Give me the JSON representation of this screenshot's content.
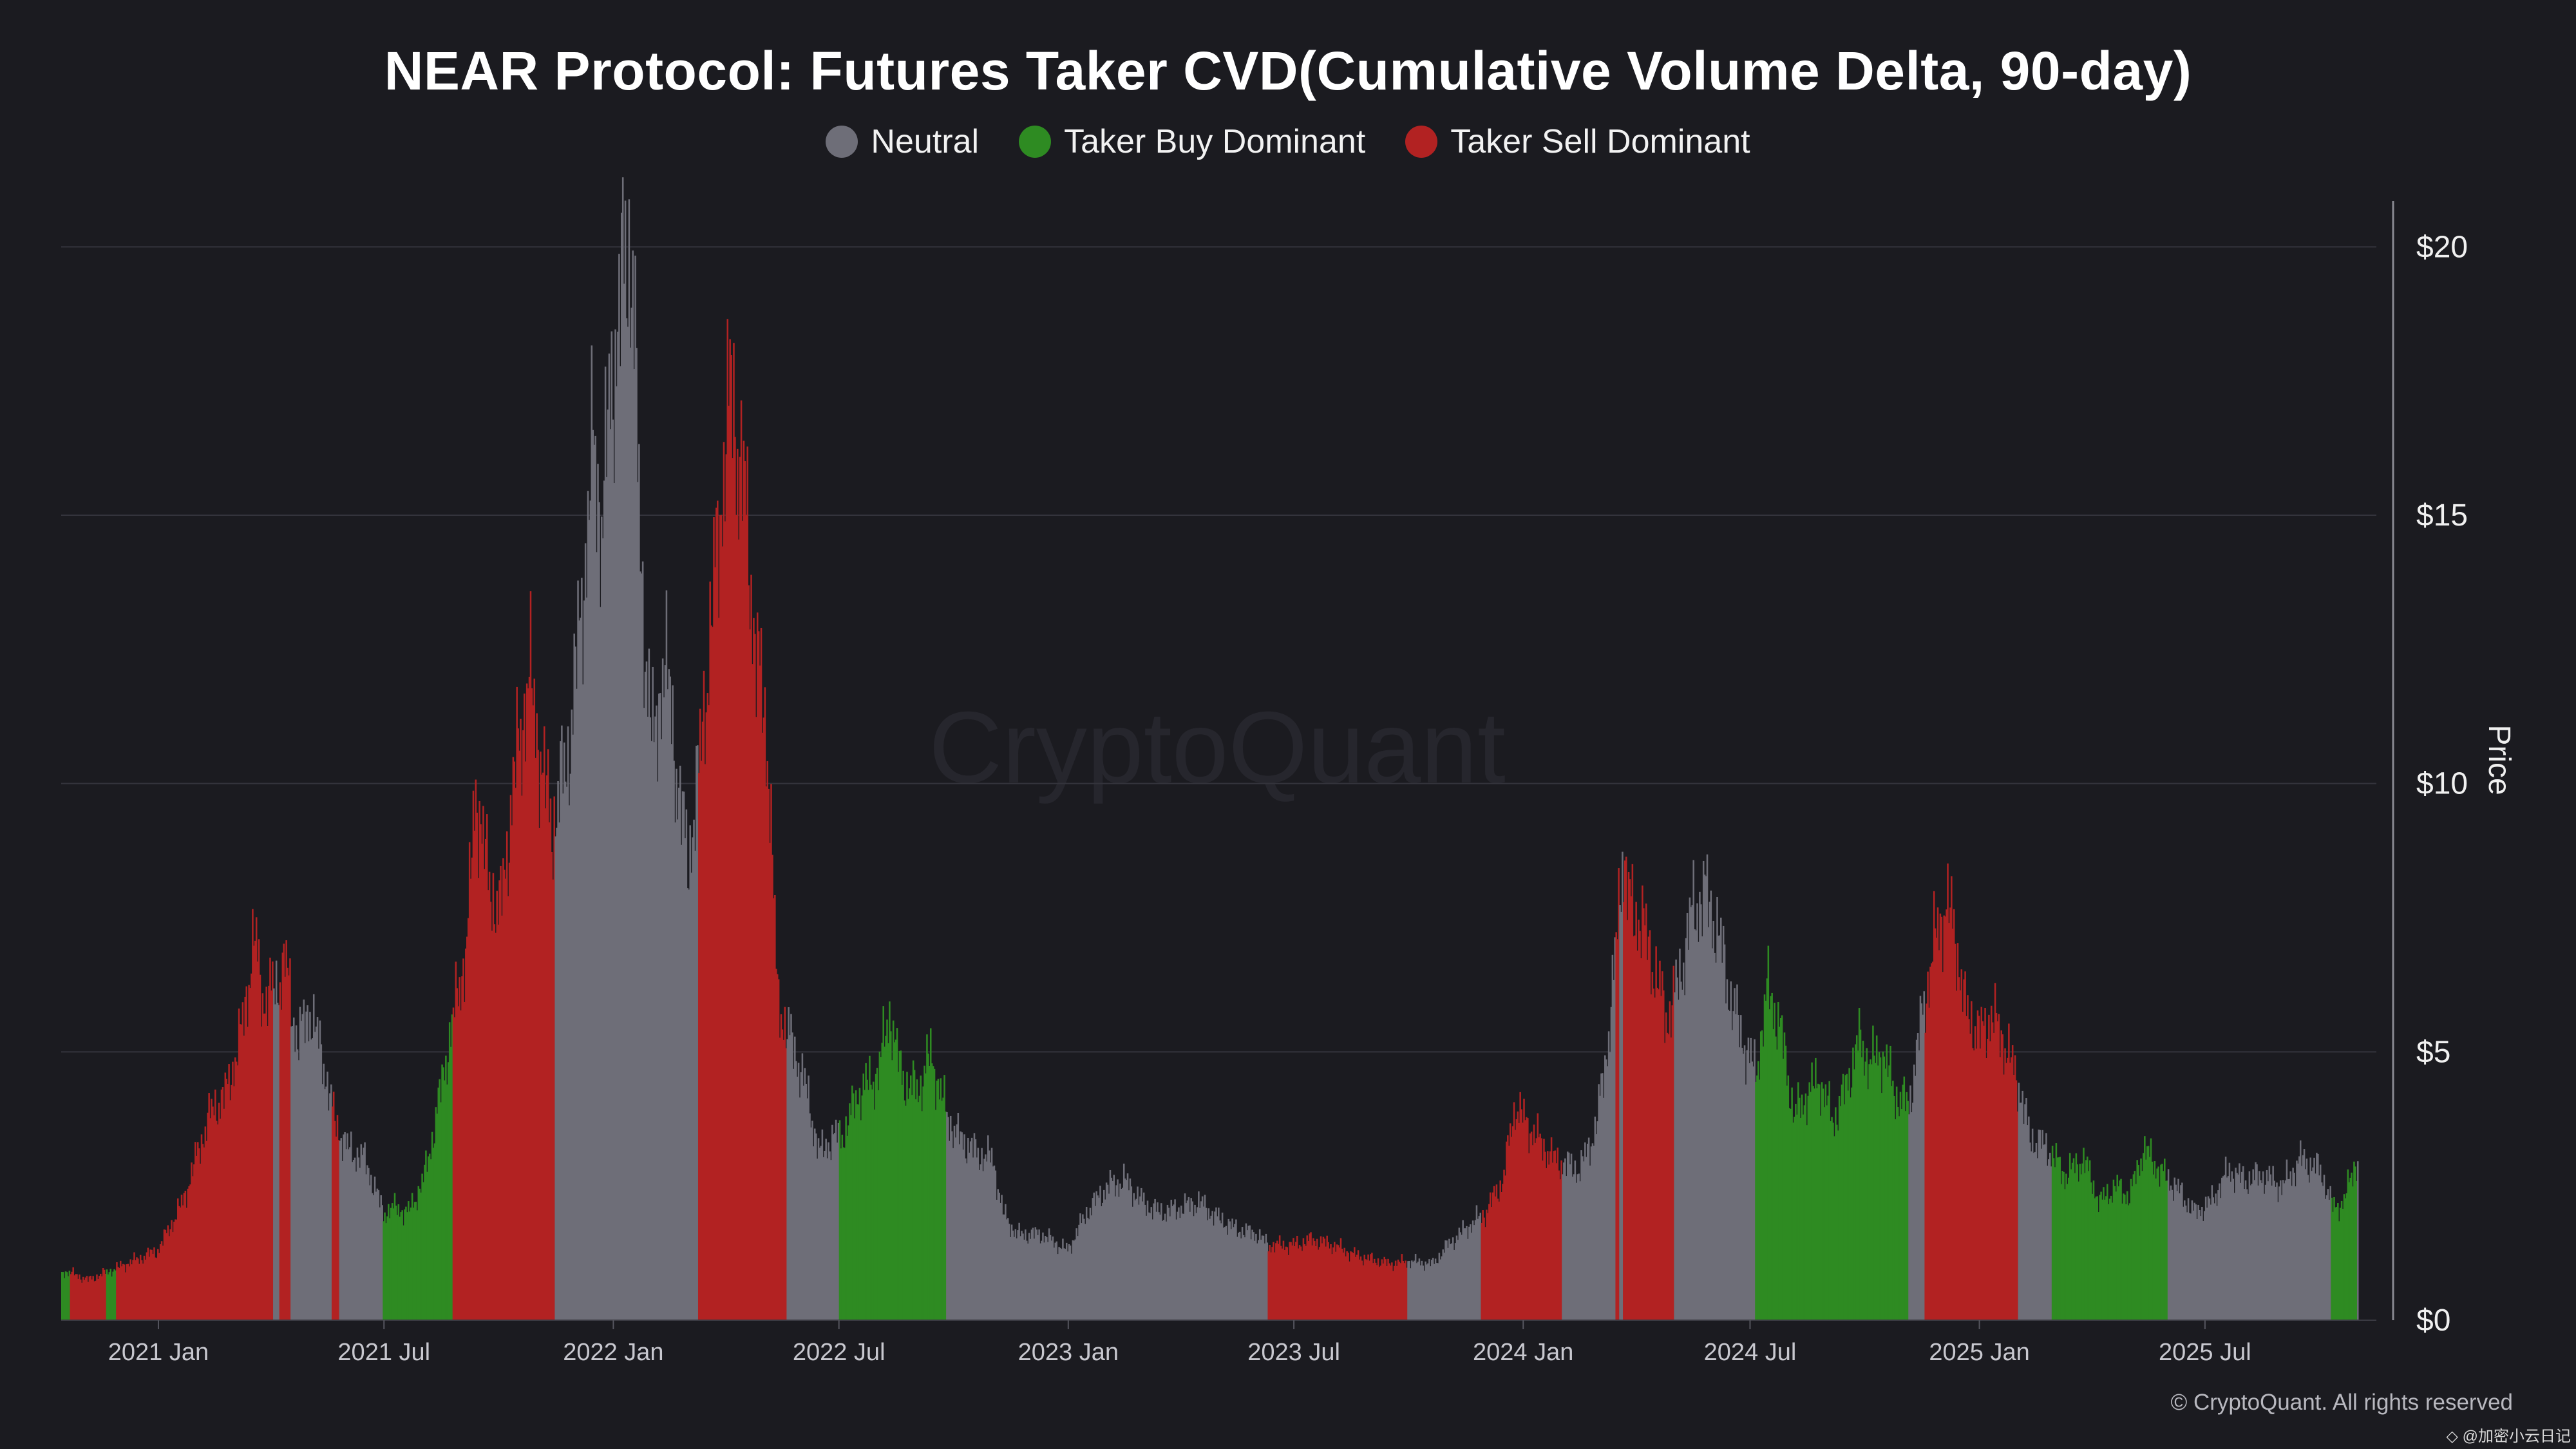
{
  "title": "NEAR Protocol: Futures Taker CVD(Cumulative Volume Delta, 90-day)",
  "legend": [
    {
      "label": "Neutral",
      "color": "#6e6e78"
    },
    {
      "label": "Taker Buy Dominant",
      "color": "#2e8b22"
    },
    {
      "label": "Taker Sell Dominant",
      "color": "#b22222"
    }
  ],
  "watermark": "CryptoQuant",
  "copyright": "© CryptoQuant. All rights reserved",
  "corner_mark": "◇ @加密小云日记",
  "chart_data": {
    "type": "bar",
    "title": "NEAR Protocol: Futures Taker CVD(Cumulative Volume Delta, 90-day)",
    "xlabel": "",
    "ylabel": "Price",
    "y_axis_side": "right",
    "ylim": [
      0,
      21
    ],
    "yticks": [
      {
        "value": 0,
        "label": "$0"
      },
      {
        "value": 5,
        "label": "$5"
      },
      {
        "value": 10,
        "label": "$10"
      },
      {
        "value": 15,
        "label": "$15"
      },
      {
        "value": 20,
        "label": "$20"
      }
    ],
    "x_range": [
      "2020-10-15",
      "2025-10-31"
    ],
    "xticks": [
      {
        "date": "2021-01-01",
        "label": "2021 Jan"
      },
      {
        "date": "2021-07-01",
        "label": "2021 Jul"
      },
      {
        "date": "2022-01-01",
        "label": "2022 Jan"
      },
      {
        "date": "2022-07-01",
        "label": "2022 Jul"
      },
      {
        "date": "2023-01-01",
        "label": "2023 Jan"
      },
      {
        "date": "2023-07-01",
        "label": "2023 Jul"
      },
      {
        "date": "2024-01-01",
        "label": "2024 Jan"
      },
      {
        "date": "2024-07-01",
        "label": "2024 Jul"
      },
      {
        "date": "2025-01-01",
        "label": "2025 Jan"
      },
      {
        "date": "2025-07-01",
        "label": "2025 Jul"
      }
    ],
    "grid": true,
    "category_colors": {
      "neutral": "#6e6e78",
      "buy": "#2e8b22",
      "sell": "#b22222"
    },
    "price_points": [
      [
        "2020-10-20",
        0.9
      ],
      [
        "2020-11-05",
        0.75
      ],
      [
        "2020-12-01",
        1.0
      ],
      [
        "2020-12-31",
        1.3
      ],
      [
        "2021-01-20",
        2.2
      ],
      [
        "2021-02-10",
        3.8
      ],
      [
        "2021-02-25",
        4.3
      ],
      [
        "2021-03-10",
        5.6
      ],
      [
        "2021-03-18",
        7.2
      ],
      [
        "2021-03-25",
        6.0
      ],
      [
        "2021-04-05",
        6.2
      ],
      [
        "2021-04-12",
        6.7
      ],
      [
        "2021-04-22",
        5.2
      ],
      [
        "2021-05-02",
        5.8
      ],
      [
        "2021-05-12",
        4.9
      ],
      [
        "2021-05-22",
        3.7
      ],
      [
        "2021-06-01",
        3.2
      ],
      [
        "2021-06-15",
        3.0
      ],
      [
        "2021-06-30",
        2.0
      ],
      [
        "2021-07-10",
        2.1
      ],
      [
        "2021-07-20",
        2.0
      ],
      [
        "2021-08-01",
        2.6
      ],
      [
        "2021-08-10",
        3.6
      ],
      [
        "2021-08-20",
        5.0
      ],
      [
        "2021-09-05",
        7.0
      ],
      [
        "2021-09-12",
        10.0
      ],
      [
        "2021-09-20",
        8.5
      ],
      [
        "2021-10-01",
        7.5
      ],
      [
        "2021-10-15",
        10.5
      ],
      [
        "2021-10-25",
        12.0
      ],
      [
        "2021-11-05",
        10.2
      ],
      [
        "2021-11-12",
        9.2
      ],
      [
        "2021-11-25",
        10.5
      ],
      [
        "2021-12-05",
        13.0
      ],
      [
        "2021-12-15",
        16.2
      ],
      [
        "2021-12-22",
        15.0
      ],
      [
        "2022-01-05",
        19.0
      ],
      [
        "2022-01-16",
        20.1
      ],
      [
        "2022-01-22",
        14.0
      ],
      [
        "2022-02-02",
        10.5
      ],
      [
        "2022-02-10",
        12.5
      ],
      [
        "2022-02-20",
        10.3
      ],
      [
        "2022-03-01",
        8.5
      ],
      [
        "2022-03-10",
        10.2
      ],
      [
        "2022-03-20",
        13.0
      ],
      [
        "2022-04-01",
        16.5
      ],
      [
        "2022-04-05",
        17.3
      ],
      [
        "2022-04-15",
        15.5
      ],
      [
        "2022-04-25",
        12.5
      ],
      [
        "2022-05-05",
        10.5
      ],
      [
        "2022-05-12",
        6.0
      ],
      [
        "2022-05-20",
        5.4
      ],
      [
        "2022-06-01",
        4.6
      ],
      [
        "2022-06-15",
        3.1
      ],
      [
        "2022-06-25",
        3.4
      ],
      [
        "2022-07-05",
        3.5
      ],
      [
        "2022-07-15",
        4.2
      ],
      [
        "2022-08-01",
        4.6
      ],
      [
        "2022-08-10",
        5.8
      ],
      [
        "2022-08-15",
        5.0
      ],
      [
        "2022-08-25",
        4.3
      ],
      [
        "2022-09-05",
        4.4
      ],
      [
        "2022-09-12",
        5.0
      ],
      [
        "2022-09-20",
        4.2
      ],
      [
        "2022-10-01",
        3.5
      ],
      [
        "2022-10-20",
        3.1
      ],
      [
        "2022-11-01",
        3.0
      ],
      [
        "2022-11-09",
        2.0
      ],
      [
        "2022-11-20",
        1.6
      ],
      [
        "2022-12-10",
        1.6
      ],
      [
        "2022-12-31",
        1.3
      ],
      [
        "2023-01-15",
        2.0
      ],
      [
        "2023-02-01",
        2.5
      ],
      [
        "2023-02-15",
        2.6
      ],
      [
        "2023-03-01",
        2.2
      ],
      [
        "2023-03-15",
        2.0
      ],
      [
        "2023-04-01",
        2.1
      ],
      [
        "2023-04-15",
        2.2
      ],
      [
        "2023-05-01",
        1.9
      ],
      [
        "2023-05-15",
        1.7
      ],
      [
        "2023-06-01",
        1.6
      ],
      [
        "2023-06-10",
        1.4
      ],
      [
        "2023-06-30",
        1.4
      ],
      [
        "2023-07-15",
        1.5
      ],
      [
        "2023-08-01",
        1.4
      ],
      [
        "2023-08-20",
        1.2
      ],
      [
        "2023-09-15",
        1.05
      ],
      [
        "2023-10-01",
        1.1
      ],
      [
        "2023-10-20",
        1.05
      ],
      [
        "2023-11-01",
        1.4
      ],
      [
        "2023-11-15",
        1.7
      ],
      [
        "2023-12-01",
        2.0
      ],
      [
        "2023-12-15",
        2.6
      ],
      [
        "2023-12-25",
        4.0
      ],
      [
        "2024-01-05",
        3.6
      ],
      [
        "2024-01-25",
        3.0
      ],
      [
        "2024-02-15",
        2.8
      ],
      [
        "2024-02-28",
        3.6
      ],
      [
        "2024-03-10",
        5.5
      ],
      [
        "2024-03-15",
        7.0
      ],
      [
        "2024-03-20",
        8.8
      ],
      [
        "2024-03-25",
        7.8
      ],
      [
        "2024-04-05",
        7.4
      ],
      [
        "2024-04-15",
        6.5
      ],
      [
        "2024-04-25",
        5.6
      ],
      [
        "2024-05-05",
        6.4
      ],
      [
        "2024-05-15",
        7.6
      ],
      [
        "2024-05-25",
        8.0
      ],
      [
        "2024-06-05",
        7.2
      ],
      [
        "2024-06-15",
        6.0
      ],
      [
        "2024-06-25",
        5.2
      ],
      [
        "2024-07-05",
        4.6
      ],
      [
        "2024-07-15",
        6.2
      ],
      [
        "2024-07-25",
        5.4
      ],
      [
        "2024-08-05",
        3.8
      ],
      [
        "2024-08-15",
        4.2
      ],
      [
        "2024-08-25",
        4.5
      ],
      [
        "2024-09-05",
        3.7
      ],
      [
        "2024-09-15",
        4.3
      ],
      [
        "2024-09-25",
        5.2
      ],
      [
        "2024-10-05",
        4.8
      ],
      [
        "2024-10-15",
        5.0
      ],
      [
        "2024-10-25",
        4.2
      ],
      [
        "2024-11-05",
        4.0
      ],
      [
        "2024-11-15",
        5.6
      ],
      [
        "2024-11-25",
        7.0
      ],
      [
        "2024-12-05",
        7.8
      ],
      [
        "2024-12-12",
        7.2
      ],
      [
        "2024-12-20",
        5.8
      ],
      [
        "2025-01-01",
        5.3
      ],
      [
        "2025-01-10",
        5.7
      ],
      [
        "2025-01-20",
        5.2
      ],
      [
        "2025-02-01",
        4.4
      ],
      [
        "2025-02-10",
        3.4
      ],
      [
        "2025-02-25",
        3.2
      ],
      [
        "2025-03-10",
        2.7
      ],
      [
        "2025-03-25",
        3.0
      ],
      [
        "2025-04-07",
        2.2
      ],
      [
        "2025-04-20",
        2.5
      ],
      [
        "2025-05-01",
        2.3
      ],
      [
        "2025-05-12",
        3.2
      ],
      [
        "2025-05-25",
        2.8
      ],
      [
        "2025-06-10",
        2.4
      ],
      [
        "2025-06-22",
        2.0
      ],
      [
        "2025-07-05",
        2.2
      ],
      [
        "2025-07-20",
        2.8
      ],
      [
        "2025-08-01",
        2.6
      ],
      [
        "2025-08-15",
        2.7
      ],
      [
        "2025-09-01",
        2.5
      ],
      [
        "2025-09-15",
        3.0
      ],
      [
        "2025-10-01",
        2.8
      ],
      [
        "2025-10-11",
        2.1
      ],
      [
        "2025-10-20",
        2.2
      ],
      [
        "2025-10-28",
        2.9
      ]
    ],
    "regime_segments": [
      {
        "start": "2020-10-15",
        "end": "2020-10-22",
        "regime": "buy"
      },
      {
        "start": "2020-10-22",
        "end": "2020-11-20",
        "regime": "sell"
      },
      {
        "start": "2020-11-20",
        "end": "2020-11-28",
        "regime": "buy"
      },
      {
        "start": "2020-11-28",
        "end": "2021-04-03",
        "regime": "sell"
      },
      {
        "start": "2021-04-03",
        "end": "2021-04-08",
        "regime": "neutral"
      },
      {
        "start": "2021-04-08",
        "end": "2021-04-17",
        "regime": "sell"
      },
      {
        "start": "2021-04-17",
        "end": "2021-05-20",
        "regime": "neutral"
      },
      {
        "start": "2021-05-20",
        "end": "2021-05-26",
        "regime": "sell"
      },
      {
        "start": "2021-05-26",
        "end": "2021-06-30",
        "regime": "neutral"
      },
      {
        "start": "2021-06-30",
        "end": "2021-08-25",
        "regime": "buy"
      },
      {
        "start": "2021-08-25",
        "end": "2021-11-15",
        "regime": "sell"
      },
      {
        "start": "2021-11-15",
        "end": "2022-03-10",
        "regime": "neutral"
      },
      {
        "start": "2022-03-10",
        "end": "2022-05-20",
        "regime": "sell"
      },
      {
        "start": "2022-05-20",
        "end": "2022-07-01",
        "regime": "neutral"
      },
      {
        "start": "2022-07-01",
        "end": "2022-09-25",
        "regime": "buy"
      },
      {
        "start": "2022-09-25",
        "end": "2023-06-10",
        "regime": "neutral"
      },
      {
        "start": "2023-06-10",
        "end": "2023-09-30",
        "regime": "sell"
      },
      {
        "start": "2023-09-30",
        "end": "2023-11-28",
        "regime": "neutral"
      },
      {
        "start": "2023-11-28",
        "end": "2024-02-01",
        "regime": "sell"
      },
      {
        "start": "2024-02-01",
        "end": "2024-03-15",
        "regime": "neutral"
      },
      {
        "start": "2024-03-15",
        "end": "2024-03-18",
        "regime": "sell"
      },
      {
        "start": "2024-03-18",
        "end": "2024-03-21",
        "regime": "neutral"
      },
      {
        "start": "2024-03-21",
        "end": "2024-05-01",
        "regime": "sell"
      },
      {
        "start": "2024-05-01",
        "end": "2024-07-05",
        "regime": "neutral"
      },
      {
        "start": "2024-07-05",
        "end": "2024-11-05",
        "regime": "buy"
      },
      {
        "start": "2024-11-05",
        "end": "2024-11-18",
        "regime": "neutral"
      },
      {
        "start": "2024-11-18",
        "end": "2025-02-01",
        "regime": "sell"
      },
      {
        "start": "2025-02-01",
        "end": "2025-02-28",
        "regime": "neutral"
      },
      {
        "start": "2025-02-28",
        "end": "2025-06-01",
        "regime": "buy"
      },
      {
        "start": "2025-06-01",
        "end": "2025-10-10",
        "regime": "neutral"
      },
      {
        "start": "2025-10-10",
        "end": "2025-10-31",
        "regime": "buy"
      }
    ]
  }
}
